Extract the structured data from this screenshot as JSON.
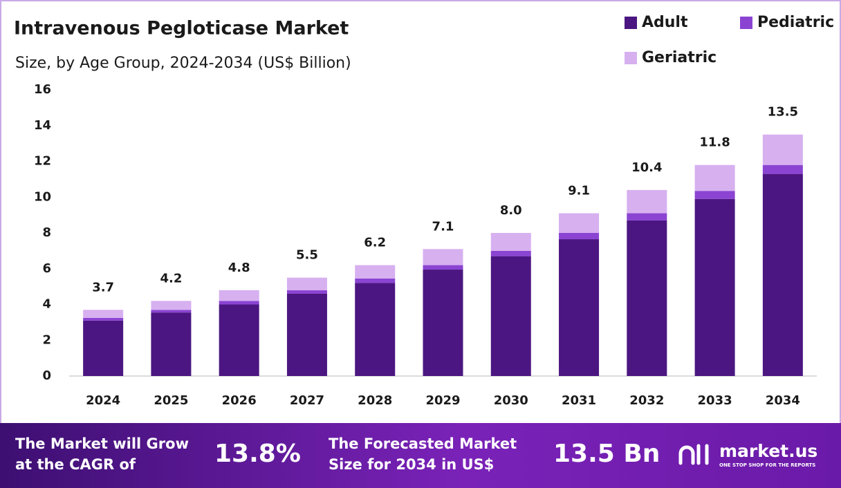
{
  "chart_data": {
    "type": "stacked_bar",
    "title": "Intravenous Pegloticase Market",
    "subtitle": "Size, by Age Group, 2024-2034 (US$ Billion)",
    "categories": [
      "2024",
      "2025",
      "2026",
      "2027",
      "2028",
      "2029",
      "2030",
      "2031",
      "2032",
      "2033",
      "2034"
    ],
    "series": [
      {
        "name": "Adult",
        "color": "#4b1681",
        "values": [
          3.1,
          3.55,
          4.0,
          4.6,
          5.2,
          5.95,
          6.7,
          7.65,
          8.7,
          9.9,
          11.3
        ]
      },
      {
        "name": "Pediatric",
        "color": "#8b44d2",
        "values": [
          0.15,
          0.15,
          0.2,
          0.2,
          0.25,
          0.25,
          0.3,
          0.35,
          0.4,
          0.45,
          0.5
        ]
      },
      {
        "name": "Geriatric",
        "color": "#d7b0f0",
        "values": [
          0.45,
          0.5,
          0.6,
          0.7,
          0.75,
          0.9,
          1.0,
          1.1,
          1.3,
          1.45,
          1.7
        ]
      }
    ],
    "totals": [
      3.7,
      4.2,
      4.8,
      5.5,
      6.2,
      7.1,
      8.0,
      9.1,
      10.4,
      11.8,
      13.5
    ],
    "total_labels": [
      "3.7",
      "4.2",
      "4.8",
      "5.5",
      "6.2",
      "7.1",
      "8.0",
      "9.1",
      "10.4",
      "11.8",
      "13.5"
    ],
    "ylim": [
      0,
      16
    ],
    "yticks": [
      0,
      2,
      4,
      6,
      8,
      10,
      12,
      14,
      16
    ],
    "grid": false
  },
  "footer": {
    "cagr_text": [
      "The Market will Grow",
      "at the CAGR of"
    ],
    "cagr_value": "13.8%",
    "forecast_text": [
      "The Forecasted Market",
      "Size for 2034 in US$"
    ],
    "forecast_value": "13.5 Bn",
    "brand": "market.us",
    "tagline": "ONE STOP SHOP FOR THE REPORTS"
  }
}
